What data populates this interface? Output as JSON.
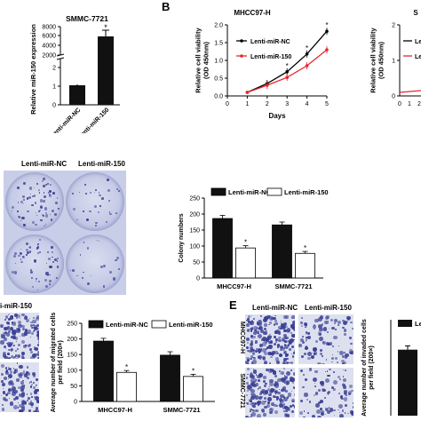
{
  "panels": {
    "A": {
      "letter": "",
      "title": "SMMC-7721",
      "ylabel": "Relative miR-150 expression",
      "categories": [
        "Lenti-miR-NC",
        "Lenti-miR-150"
      ],
      "yticks": [
        "0",
        "1",
        "2",
        "2000",
        "4000",
        "6000",
        "8000"
      ]
    },
    "B": {
      "letter": "B",
      "left": {
        "title": "MHCC97-H",
        "ylabel": "Relative cell viability\n(OD 450nm)",
        "xlabel": "Days",
        "legend": [
          "Lenti-miR-NC",
          "Lenti-miR-150"
        ],
        "yticks": [
          "0.0",
          "0.5",
          "1.0",
          "1.5",
          "2.0"
        ],
        "xticks": [
          "0",
          "1",
          "2",
          "3",
          "4",
          "5"
        ]
      },
      "right": {
        "title": "S",
        "ylabel": "Relative cell viability\n(OD 450nm)",
        "legend": [
          "Lenti-miR-NC",
          "Lenti-miR-150"
        ],
        "yticks": [
          "0",
          "1",
          "2"
        ],
        "xticks": [
          "0",
          "1",
          "2"
        ]
      }
    },
    "C": {
      "col_labels": [
        "Lenti-miR-NC",
        "Lenti-miR-150"
      ],
      "ylabel": "Colony numbers",
      "legend": [
        "Lenti-miR-NC",
        "Lenti-miR-150"
      ],
      "categories": [
        "MHCC97-H",
        "SMMC-7721"
      ],
      "yticks": [
        "0",
        "50",
        "100",
        "150",
        "200",
        "250"
      ]
    },
    "D": {
      "col_label": "i-miR-150",
      "ylabel": "Average number of migrated cells\nper field (200×)",
      "legend": [
        "Lenti-miR-NC",
        "Lenti-miR-150"
      ],
      "categories": [
        "MHCC97-H",
        "SMMC-7721"
      ],
      "yticks": [
        "0",
        "50",
        "100",
        "150",
        "200",
        "250"
      ]
    },
    "E": {
      "letter": "E",
      "col_labels": [
        "Lenti-miR-NC",
        "Lenti-miR-150"
      ],
      "row_labels": [
        "MHCC97-H",
        "SMMC-7721"
      ],
      "ylabel": "Average number of invaded cells\nper field (200×)",
      "legend": [
        "Le"
      ]
    }
  },
  "significance": "*",
  "colors": {
    "black_bar": "#111111",
    "white_bar": "#ffffff",
    "nc_line": "#000000",
    "mir150_line": "#e8262b",
    "stain": "#3a3f95",
    "dish": "#c6cbe6"
  },
  "chart_data": [
    {
      "type": "bar",
      "title": "SMMC-7721",
      "ylabel": "Relative miR-150 expression",
      "categories": [
        "Lenti-miR-NC",
        "Lenti-miR-150"
      ],
      "values": [
        1.0,
        3400
      ],
      "errors": [
        0.05,
        400
      ],
      "yaxis_break": "2 to 2000"
    },
    {
      "type": "line",
      "title": "MHCC97-H",
      "xlabel": "Days",
      "ylabel": "Relative cell viability (OD 450nm)",
      "x": [
        1,
        2,
        3,
        4,
        5
      ],
      "ylim": [
        0,
        2.0
      ],
      "series": [
        {
          "name": "Lenti-miR-NC",
          "values": [
            0.1,
            0.35,
            0.68,
            1.18,
            1.82
          ]
        },
        {
          "name": "Lenti-miR-150",
          "values": [
            0.1,
            0.3,
            0.52,
            0.85,
            1.3
          ]
        }
      ]
    },
    {
      "type": "bar",
      "ylabel": "Colony numbers",
      "categories": [
        "MHCC97-H",
        "SMMC-7721"
      ],
      "ylim": [
        0,
        250
      ],
      "series": [
        {
          "name": "Lenti-miR-NC",
          "values": [
            186,
            166
          ],
          "errors": [
            10,
            9
          ]
        },
        {
          "name": "Lenti-miR-150",
          "values": [
            94,
            77
          ],
          "errors": [
            7,
            6
          ]
        }
      ]
    },
    {
      "type": "bar",
      "ylabel": "Average number of migrated cells per field (200×)",
      "categories": [
        "MHCC97-H",
        "SMMC-7721"
      ],
      "ylim": [
        0,
        250
      ],
      "series": [
        {
          "name": "Lenti-miR-NC",
          "values": [
            193,
            148
          ],
          "errors": [
            9,
            11
          ]
        },
        {
          "name": "Lenti-miR-150",
          "values": [
            93,
            80
          ],
          "errors": [
            6,
            7
          ]
        }
      ]
    },
    {
      "type": "bar",
      "ylabel": "Average number of invaded cells per field (200×)",
      "categories": [
        "MHCC97-H"
      ],
      "ylim": [
        0,
        250
      ],
      "series": [
        {
          "name": "Lenti-miR-NC",
          "values": [
            172
          ],
          "errors": [
            10
          ]
        }
      ]
    }
  ]
}
